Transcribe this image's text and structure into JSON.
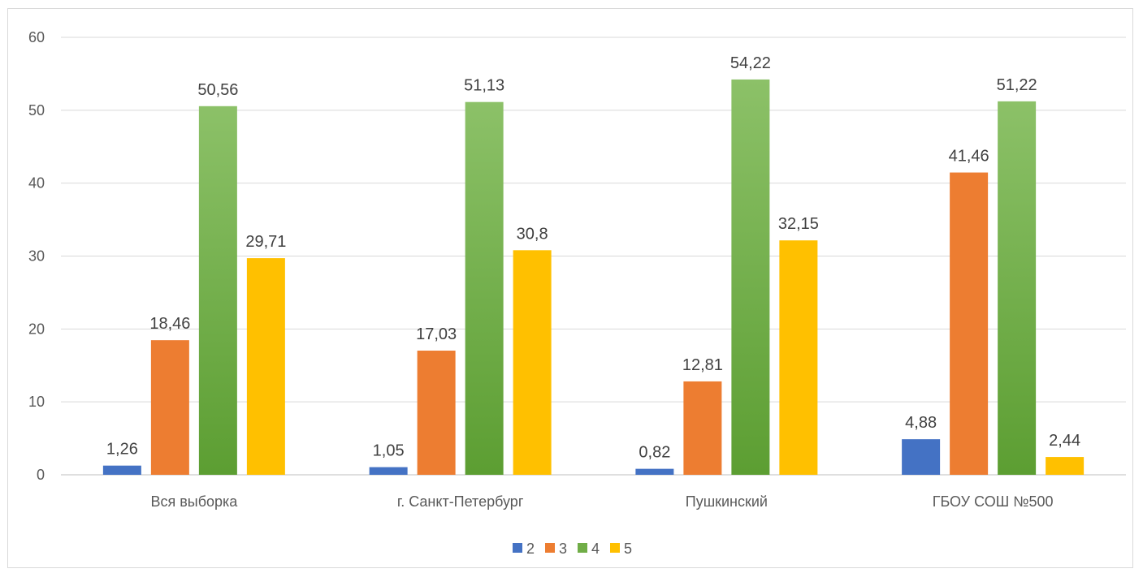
{
  "chart_data": {
    "type": "bar",
    "title": "",
    "xlabel": "",
    "ylabel": "",
    "ylim": [
      0,
      60
    ],
    "y_ticks": [
      "0",
      "10",
      "20",
      "30",
      "40",
      "50",
      "60"
    ],
    "grid": true,
    "legend_position": "bottom",
    "categories": [
      "Вся выборка",
      "г. Санкт-Петербург",
      "Пушкинский",
      "ГБОУ СОШ №500"
    ],
    "series": [
      {
        "name": "2",
        "color": "#4472c4",
        "values": [
          1.26,
          1.05,
          0.82,
          4.88
        ],
        "labels": [
          "1,26",
          "1,05",
          "0,82",
          "4,88"
        ]
      },
      {
        "name": "3",
        "color": "#ed7d31",
        "values": [
          18.46,
          17.03,
          12.81,
          41.46
        ],
        "labels": [
          "18,46",
          "17,03",
          "12,81",
          "41,46"
        ]
      },
      {
        "name": "4",
        "color": "#70ad47",
        "values": [
          50.56,
          51.13,
          54.22,
          51.22
        ],
        "labels": [
          "50,56",
          "51,13",
          "54,22",
          "51,22"
        ]
      },
      {
        "name": "5",
        "color": "#ffc000",
        "values": [
          29.71,
          30.8,
          32.15,
          2.44
        ],
        "labels": [
          "29,71",
          "30,8",
          "32,15",
          "2,44"
        ]
      }
    ]
  }
}
